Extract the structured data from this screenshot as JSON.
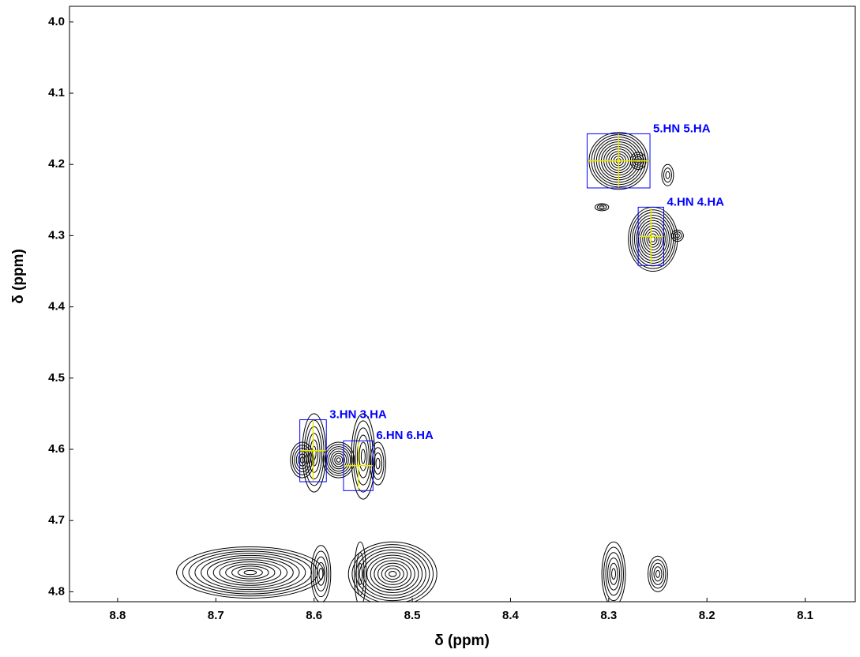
{
  "chart_data": {
    "type": "contour",
    "xlabel": "δ (ppm)",
    "ylabel": "δ (ppm)",
    "xlim": [
      8.849,
      8.049
    ],
    "ylim": [
      3.978,
      4.814
    ],
    "xticks": [
      8.8,
      8.7,
      8.6,
      8.5,
      8.4,
      8.3,
      8.2,
      8.1
    ],
    "yticks": [
      {
        "value": 4,
        "label": "4.0"
      },
      4.1,
      4.2,
      4.3,
      4.4,
      4.5,
      4.6,
      4.7,
      4.8
    ],
    "color": "#000000",
    "peak_color": "#0000ff",
    "crosshair_color": "#e8e800",
    "peaks": [
      {
        "label": "5.HN 5.HA",
        "x": 8.29,
        "y": 4.195,
        "width": 0.064,
        "height": 0.076
      },
      {
        "label": "4.HN 4.HA",
        "x": 8.257,
        "y": 4.301,
        "width": 0.026,
        "height": 0.082
      },
      {
        "label": "3.HN 3.HA",
        "x": 8.601,
        "y": 4.602,
        "width": 0.027,
        "height": 0.087
      },
      {
        "label": "6.HN 6.HA",
        "x": 8.555,
        "y": 4.623,
        "width": 0.03,
        "height": 0.07
      }
    ],
    "contours": [
      {
        "x": 8.665,
        "y": 4.773,
        "rx": 0.075,
        "ry": 0.036
      },
      {
        "x": 8.593,
        "y": 4.775,
        "rx": 0.01,
        "ry": 0.04
      },
      {
        "x": 8.553,
        "y": 4.775,
        "rx": 0.006,
        "ry": 0.045
      },
      {
        "x": 8.52,
        "y": 4.775,
        "rx": 0.045,
        "ry": 0.045
      },
      {
        "x": 8.295,
        "y": 4.775,
        "rx": 0.012,
        "ry": 0.045
      },
      {
        "x": 8.25,
        "y": 4.775,
        "rx": 0.01,
        "ry": 0.025
      },
      {
        "x": 8.29,
        "y": 4.195,
        "rx": 0.03,
        "ry": 0.04
      },
      {
        "x": 8.27,
        "y": 4.195,
        "rx": 0.008,
        "ry": 0.012
      },
      {
        "x": 8.24,
        "y": 4.215,
        "rx": 0.006,
        "ry": 0.015
      },
      {
        "x": 8.307,
        "y": 4.26,
        "rx": 0.007,
        "ry": 0.005
      },
      {
        "x": 8.255,
        "y": 4.305,
        "rx": 0.025,
        "ry": 0.045
      },
      {
        "x": 8.23,
        "y": 4.3,
        "rx": 0.006,
        "ry": 0.008
      },
      {
        "x": 8.6,
        "y": 4.605,
        "rx": 0.012,
        "ry": 0.055
      },
      {
        "x": 8.612,
        "y": 4.615,
        "rx": 0.012,
        "ry": 0.025
      },
      {
        "x": 8.55,
        "y": 4.61,
        "rx": 0.012,
        "ry": 0.06
      },
      {
        "x": 8.575,
        "y": 4.615,
        "rx": 0.016,
        "ry": 0.025
      },
      {
        "x": 8.535,
        "y": 4.62,
        "rx": 0.008,
        "ry": 0.03
      }
    ]
  }
}
